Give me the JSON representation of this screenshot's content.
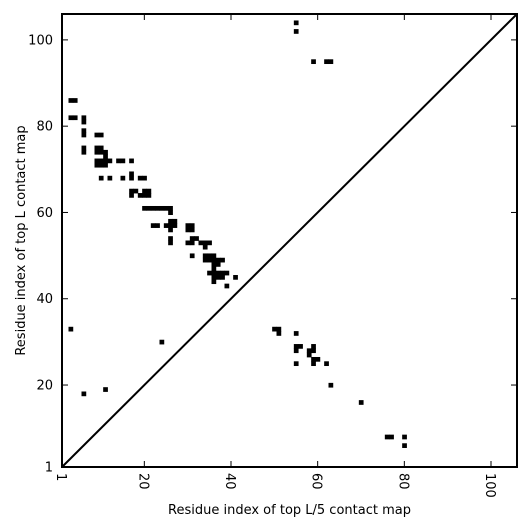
{
  "chart_data": {
    "type": "heatmap",
    "title": "",
    "xlabel": "Residue index of top L/5 contact map",
    "ylabel": "Residue index of top L contact map",
    "xlim": [
      1,
      106
    ],
    "ylim": [
      1,
      106
    ],
    "x_ticks": [
      1,
      20,
      40,
      60,
      80,
      100
    ],
    "y_ticks": [
      1,
      20,
      40,
      60,
      80,
      100
    ],
    "x_tick_rotation": 90,
    "grid": false,
    "diagonal": true,
    "cell_color": "#000000",
    "upper_triangle_points": [
      [
        3,
        86
      ],
      [
        4,
        86
      ],
      [
        3,
        82
      ],
      [
        4,
        82
      ],
      [
        6,
        82
      ],
      [
        6,
        81
      ],
      [
        9,
        78
      ],
      [
        10,
        78
      ],
      [
        6,
        79
      ],
      [
        6,
        78
      ],
      [
        6,
        75
      ],
      [
        6,
        74
      ],
      [
        9,
        75
      ],
      [
        10,
        75
      ],
      [
        9,
        74
      ],
      [
        10,
        74
      ],
      [
        11,
        74
      ],
      [
        11,
        73
      ],
      [
        9,
        72
      ],
      [
        10,
        72
      ],
      [
        11,
        72
      ],
      [
        12,
        72
      ],
      [
        14,
        72
      ],
      [
        15,
        72
      ],
      [
        17,
        72
      ],
      [
        9,
        71
      ],
      [
        10,
        71
      ],
      [
        11,
        71
      ],
      [
        10,
        68
      ],
      [
        12,
        68
      ],
      [
        15,
        68
      ],
      [
        17,
        69
      ],
      [
        17,
        68
      ],
      [
        19,
        68
      ],
      [
        20,
        68
      ],
      [
        17,
        65
      ],
      [
        18,
        65
      ],
      [
        20,
        65
      ],
      [
        21,
        65
      ],
      [
        17,
        64
      ],
      [
        19,
        64
      ],
      [
        20,
        64
      ],
      [
        21,
        64
      ],
      [
        20,
        61
      ],
      [
        21,
        61
      ],
      [
        22,
        61
      ],
      [
        23,
        61
      ],
      [
        24,
        61
      ],
      [
        25,
        61
      ],
      [
        26,
        61
      ],
      [
        26,
        60
      ],
      [
        22,
        57
      ],
      [
        23,
        57
      ],
      [
        25,
        57
      ],
      [
        26,
        58
      ],
      [
        27,
        58
      ],
      [
        26,
        57
      ],
      [
        27,
        57
      ],
      [
        26,
        56
      ],
      [
        26,
        54
      ],
      [
        26,
        53
      ],
      [
        30,
        57
      ],
      [
        31,
        57
      ],
      [
        30,
        56
      ],
      [
        31,
        56
      ],
      [
        31,
        54
      ],
      [
        32,
        54
      ],
      [
        30,
        53
      ],
      [
        31,
        53
      ],
      [
        33,
        53
      ],
      [
        34,
        53
      ],
      [
        35,
        53
      ],
      [
        34,
        52
      ],
      [
        31,
        50
      ],
      [
        34,
        50
      ],
      [
        35,
        50
      ],
      [
        36,
        50
      ],
      [
        34,
        49
      ],
      [
        35,
        49
      ],
      [
        36,
        49
      ],
      [
        37,
        49
      ],
      [
        38,
        49
      ],
      [
        36,
        48
      ],
      [
        37,
        48
      ],
      [
        36,
        47
      ],
      [
        35,
        46
      ],
      [
        36,
        46
      ],
      [
        37,
        46
      ],
      [
        38,
        46
      ],
      [
        39,
        46
      ],
      [
        36,
        45
      ],
      [
        37,
        45
      ],
      [
        38,
        45
      ],
      [
        36,
        44
      ],
      [
        39,
        43
      ],
      [
        41,
        45
      ],
      [
        3,
        33
      ],
      [
        24,
        30
      ],
      [
        6,
        18
      ],
      [
        11,
        19
      ]
    ],
    "lower_triangle_points": [
      [
        55,
        104
      ],
      [
        55,
        102
      ],
      [
        59,
        95
      ],
      [
        62,
        95
      ],
      [
        63,
        95
      ],
      [
        50,
        33
      ],
      [
        51,
        33
      ],
      [
        51,
        32
      ],
      [
        55,
        32
      ],
      [
        55,
        29
      ],
      [
        56,
        29
      ],
      [
        55,
        28
      ],
      [
        58,
        28
      ],
      [
        59,
        28
      ],
      [
        59,
        29
      ],
      [
        58,
        27
      ],
      [
        55,
        25
      ],
      [
        59,
        26
      ],
      [
        60,
        26
      ],
      [
        59,
        25
      ],
      [
        62,
        25
      ],
      [
        63,
        20
      ],
      [
        70,
        16
      ],
      [
        76,
        8
      ],
      [
        77,
        8
      ],
      [
        80,
        8
      ],
      [
        80,
        6
      ]
    ]
  }
}
